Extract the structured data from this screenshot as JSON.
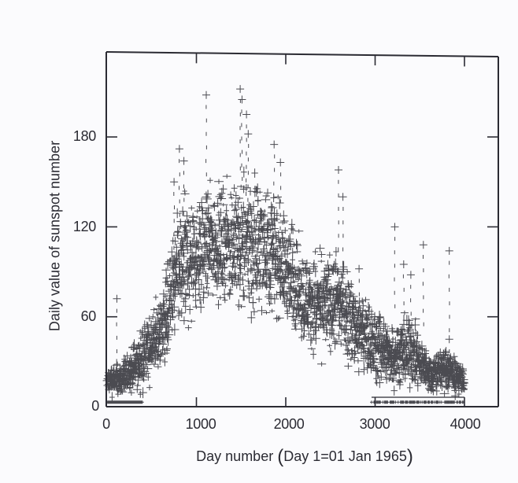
{
  "chart_data": {
    "type": "scatter",
    "title": "",
    "xlabel": "Day number (Day 1=01 Jan 1965)",
    "ylabel": "Daily value of sunspot number",
    "xlim": [
      0,
      4400
    ],
    "ylim": [
      0,
      230
    ],
    "xticks": [
      0,
      1000,
      2000,
      3000,
      4000
    ],
    "yticks": [
      0,
      60,
      120,
      180
    ],
    "grid": false,
    "legend": null,
    "marker": "cross",
    "ink_color": "#2b2b33",
    "background": "#fbfbfd",
    "envelope": [
      {
        "day": 0,
        "low": 3,
        "center": 15,
        "high": 30
      },
      {
        "day": 200,
        "low": 3,
        "center": 14,
        "high": 35
      },
      {
        "day": 400,
        "low": 5,
        "center": 25,
        "high": 60
      },
      {
        "day": 600,
        "low": 15,
        "center": 50,
        "high": 85
      },
      {
        "day": 800,
        "low": 30,
        "center": 80,
        "high": 150
      },
      {
        "day": 1000,
        "low": 45,
        "center": 100,
        "high": 160
      },
      {
        "day": 1200,
        "low": 60,
        "center": 110,
        "high": 160
      },
      {
        "day": 1400,
        "low": 55,
        "center": 105,
        "high": 160
      },
      {
        "day": 1600,
        "low": 45,
        "center": 100,
        "high": 170
      },
      {
        "day": 1800,
        "low": 50,
        "center": 110,
        "high": 165
      },
      {
        "day": 2000,
        "low": 45,
        "center": 95,
        "high": 140
      },
      {
        "day": 2200,
        "low": 30,
        "center": 75,
        "high": 115
      },
      {
        "day": 2400,
        "low": 25,
        "center": 65,
        "high": 110
      },
      {
        "day": 2600,
        "low": 25,
        "center": 70,
        "high": 115
      },
      {
        "day": 2800,
        "low": 15,
        "center": 50,
        "high": 90
      },
      {
        "day": 3000,
        "low": 5,
        "center": 35,
        "high": 75
      },
      {
        "day": 3200,
        "low": 5,
        "center": 30,
        "high": 65
      },
      {
        "day": 3400,
        "low": 5,
        "center": 30,
        "high": 70
      },
      {
        "day": 3600,
        "low": 5,
        "center": 18,
        "high": 40
      },
      {
        "day": 3800,
        "low": 5,
        "center": 20,
        "high": 45
      },
      {
        "day": 4000,
        "low": 5,
        "center": 12,
        "high": 30
      }
    ],
    "notable_points": [
      {
        "day": 110,
        "value": 72
      },
      {
        "day": 750,
        "value": 150
      },
      {
        "day": 810,
        "value": 172
      },
      {
        "day": 860,
        "value": 164
      },
      {
        "day": 1110,
        "value": 208
      },
      {
        "day": 1490,
        "value": 212
      },
      {
        "day": 1510,
        "value": 205
      },
      {
        "day": 1560,
        "value": 195
      },
      {
        "day": 1580,
        "value": 182
      },
      {
        "day": 1870,
        "value": 175
      },
      {
        "day": 1940,
        "value": 163
      },
      {
        "day": 2590,
        "value": 158
      },
      {
        "day": 2640,
        "value": 140
      },
      {
        "day": 2820,
        "value": 92
      },
      {
        "day": 3220,
        "value": 120
      },
      {
        "day": 3320,
        "value": 95
      },
      {
        "day": 3400,
        "value": 88
      },
      {
        "day": 3540,
        "value": 108
      },
      {
        "day": 3830,
        "value": 104
      },
      {
        "day": 3830,
        "value": 45
      }
    ],
    "peak_approx": {
      "day": 1500,
      "value": 215
    }
  },
  "axes": {
    "y_tick_labels": [
      "0",
      "60",
      "120",
      "180"
    ],
    "x_tick_labels": [
      "0",
      "1000",
      "2000",
      "3000",
      "4000"
    ],
    "xlabel_main": "Day number",
    "xlabel_paren": "Day 1=01 Jan 1965",
    "ylabel": "Daily value of sunspot number"
  }
}
